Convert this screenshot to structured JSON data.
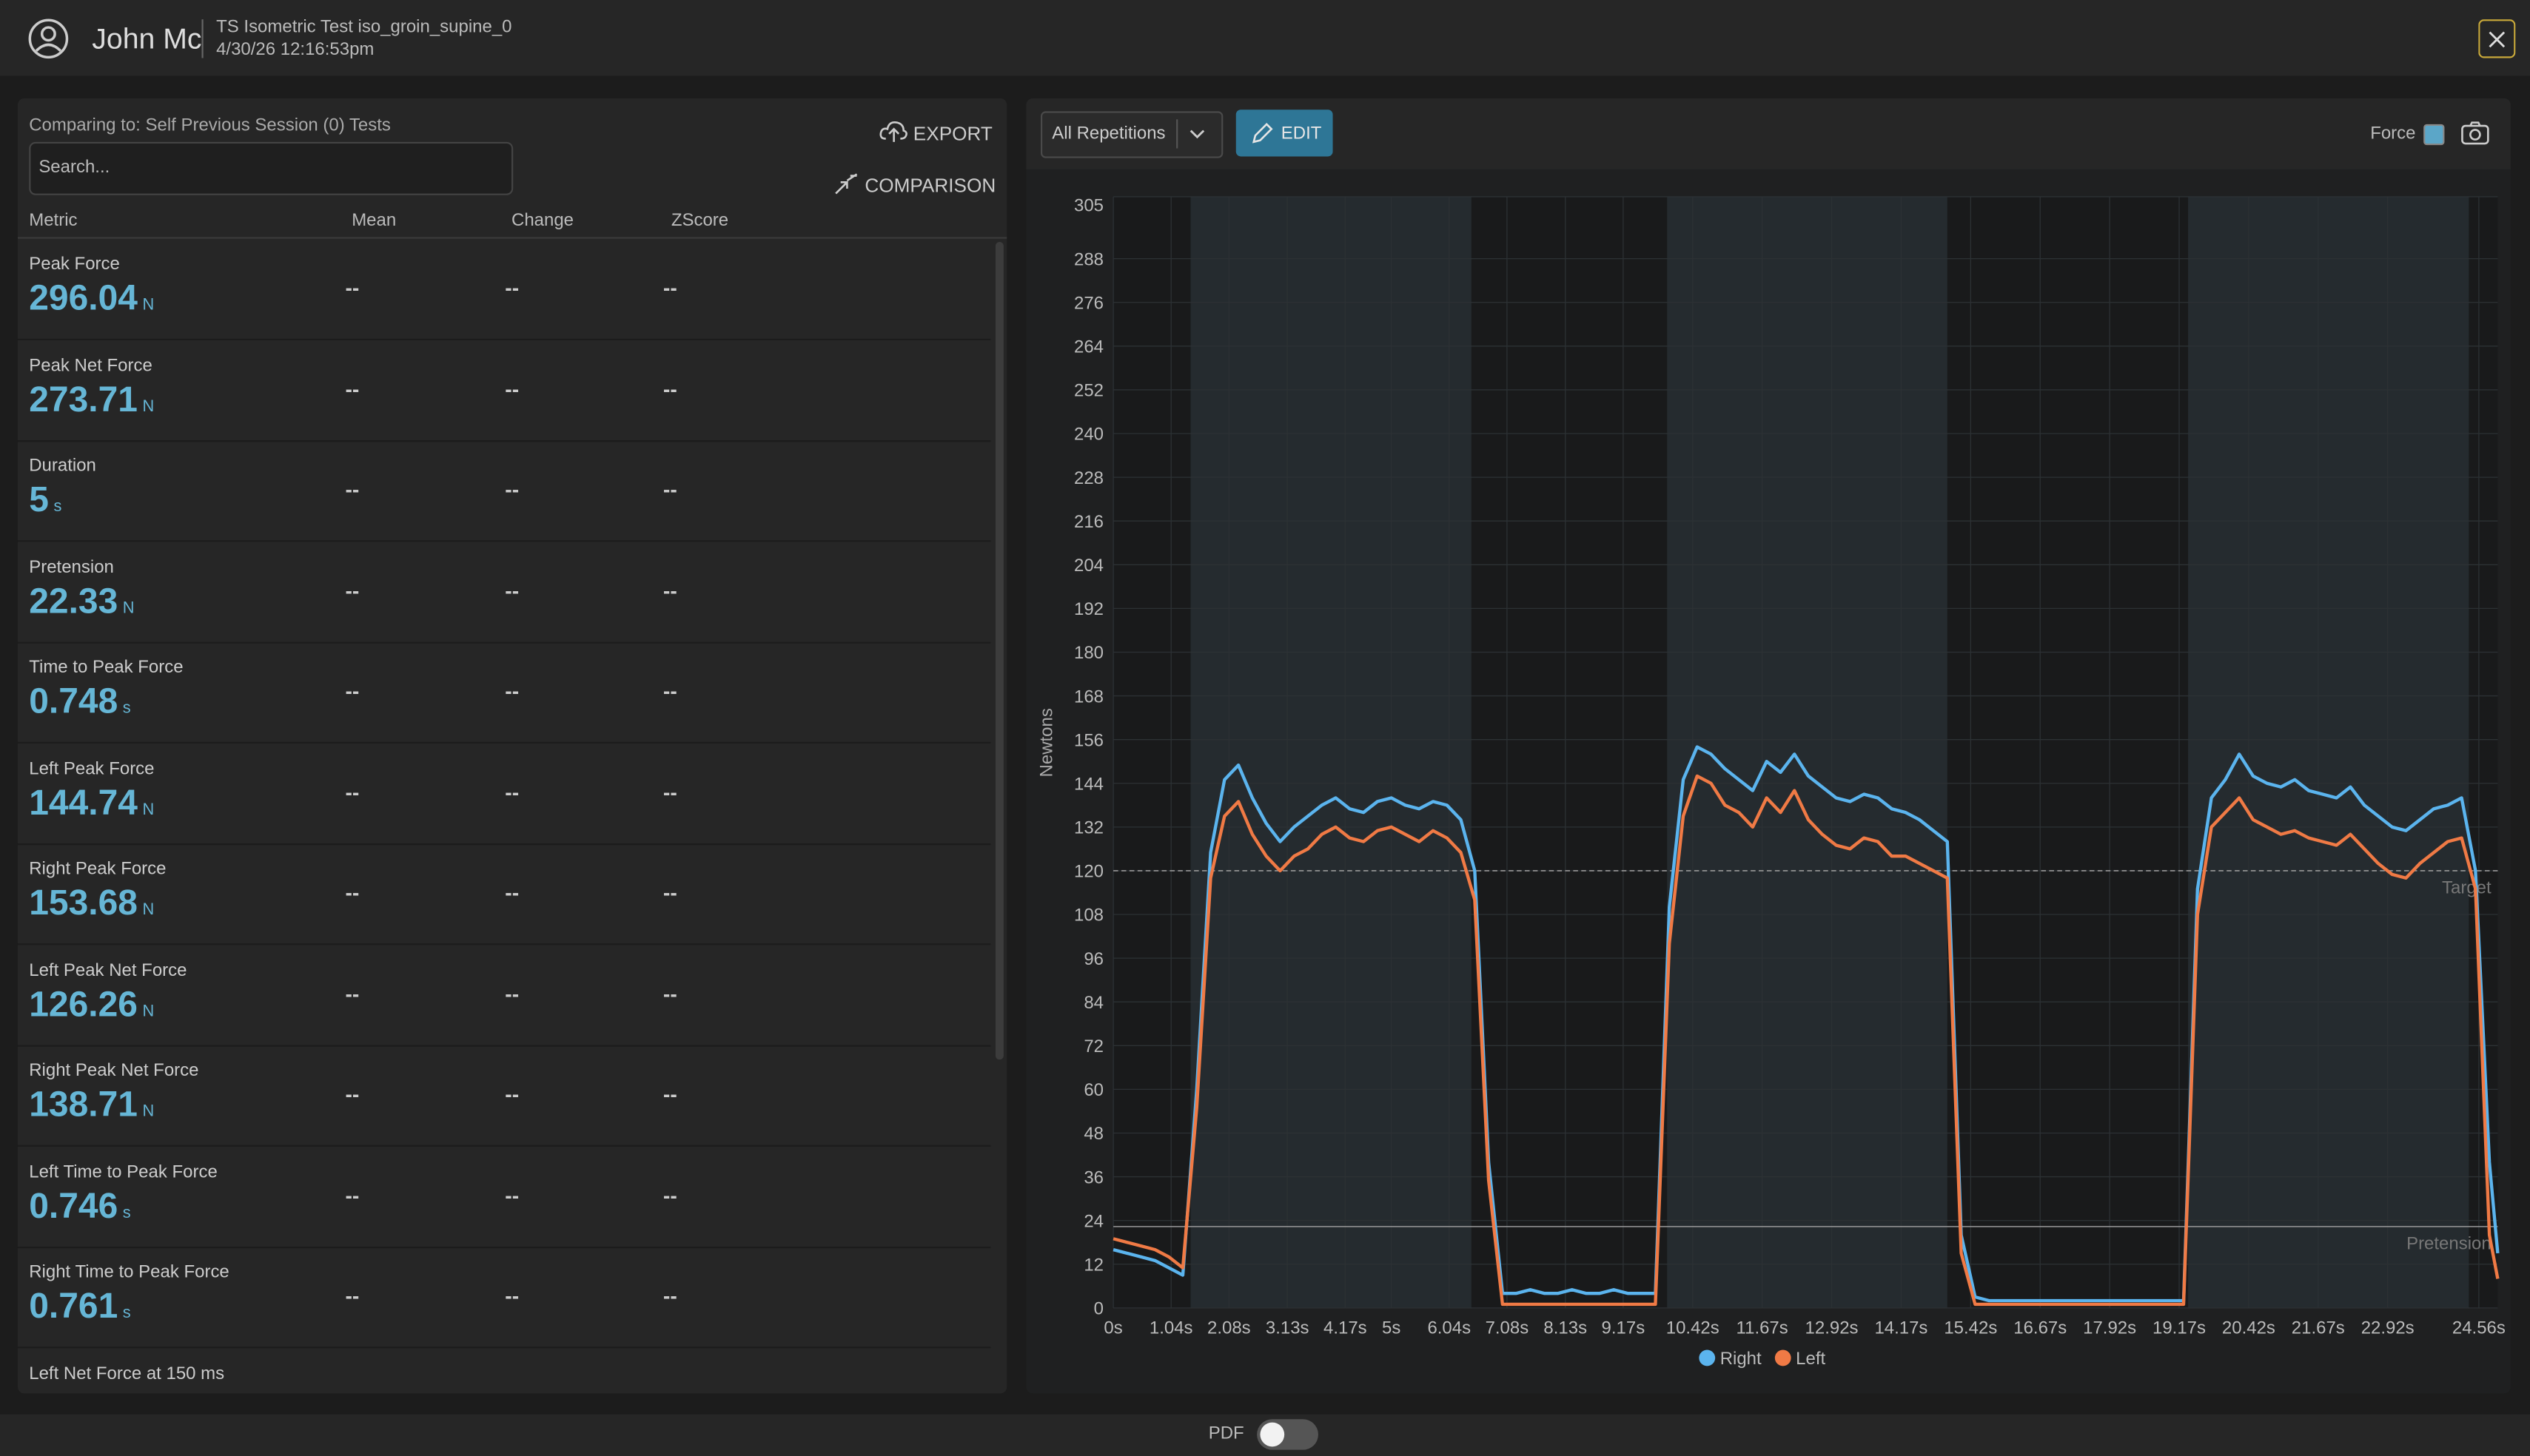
{
  "header": {
    "name": "John Mc",
    "test": "TS Isometric Test iso_groin_supine_0",
    "date": "4/30/26 12:16:53pm"
  },
  "metrics_panel": {
    "comparing": "Comparing to: Self Previous Session (0) Tests",
    "search_placeholder": "Search...",
    "export": "EXPORT",
    "comparison": "COMPARISON",
    "columns": [
      "Metric",
      "Mean",
      "Change",
      "ZScore"
    ],
    "rows": [
      {
        "name": "Peak Force",
        "value": "296.04",
        "unit": "N",
        "mean": "--",
        "change": "--",
        "zscore": "--"
      },
      {
        "name": "Peak Net Force",
        "value": "273.71",
        "unit": "N",
        "mean": "--",
        "change": "--",
        "zscore": "--"
      },
      {
        "name": "Duration",
        "value": "5",
        "unit": "s",
        "mean": "--",
        "change": "--",
        "zscore": "--"
      },
      {
        "name": "Pretension",
        "value": "22.33",
        "unit": "N",
        "mean": "--",
        "change": "--",
        "zscore": "--"
      },
      {
        "name": "Time to Peak Force",
        "value": "0.748",
        "unit": "s",
        "mean": "--",
        "change": "--",
        "zscore": "--"
      },
      {
        "name": "Left Peak Force",
        "value": "144.74",
        "unit": "N",
        "mean": "--",
        "change": "--",
        "zscore": "--"
      },
      {
        "name": "Right Peak Force",
        "value": "153.68",
        "unit": "N",
        "mean": "--",
        "change": "--",
        "zscore": "--"
      },
      {
        "name": "Left Peak Net Force",
        "value": "126.26",
        "unit": "N",
        "mean": "--",
        "change": "--",
        "zscore": "--"
      },
      {
        "name": "Right Peak Net Force",
        "value": "138.71",
        "unit": "N",
        "mean": "--",
        "change": "--",
        "zscore": "--"
      },
      {
        "name": "Left Time to Peak Force",
        "value": "0.746",
        "unit": "s",
        "mean": "--",
        "change": "--",
        "zscore": "--"
      },
      {
        "name": "Right Time to Peak Force",
        "value": "0.761",
        "unit": "s",
        "mean": "--",
        "change": "--",
        "zscore": "--"
      },
      {
        "name": "Left Net Force at 150 ms"
      }
    ]
  },
  "toolbar": {
    "selector": "All Repetitions",
    "edit": "EDIT",
    "force": "Force"
  },
  "chart_data": {
    "type": "line",
    "y_label": "Newtons",
    "legend": "bottom",
    "grid": true,
    "x": [
      0,
      0.25,
      0.5,
      0.75,
      1,
      1.25,
      1.5,
      1.75,
      2,
      2.25,
      2.5,
      2.75,
      3,
      3.25,
      3.5,
      3.75,
      4,
      4.25,
      4.5,
      4.75,
      5,
      5.25,
      5.5,
      5.75,
      6,
      6.25,
      6.5,
      6.75,
      7,
      7.25,
      7.5,
      7.75,
      8,
      8.25,
      8.5,
      8.75,
      9,
      9.25,
      9.5,
      9.75,
      10,
      10.25,
      10.5,
      10.75,
      11,
      11.25,
      11.5,
      11.75,
      12,
      12.25,
      12.5,
      12.75,
      13,
      13.25,
      13.5,
      13.75,
      14,
      14.25,
      14.5,
      14.75,
      15,
      15.25,
      15.5,
      15.75,
      16,
      16.25,
      16.5,
      16.75,
      17,
      17.25,
      17.5,
      17.75,
      18,
      18.25,
      18.5,
      18.75,
      19,
      19.25,
      19.5,
      19.75,
      20,
      20.25,
      20.5,
      20.75,
      21,
      21.25,
      21.5,
      21.75,
      22,
      22.25,
      22.5,
      22.75,
      23,
      23.25,
      23.5,
      23.75,
      24,
      24.25,
      24.5,
      24.75,
      24.9
    ],
    "series": [
      {
        "name": "Right",
        "color": "#5bb4ee",
        "values": [
          16,
          15,
          14,
          13,
          11,
          9,
          60,
          125,
          145,
          149,
          140,
          133,
          128,
          132,
          135,
          138,
          140,
          137,
          136,
          139,
          140,
          138,
          137,
          139,
          138,
          134,
          120,
          40,
          4,
          4,
          5,
          4,
          4,
          5,
          4,
          4,
          5,
          4,
          4,
          4,
          110,
          145,
          154,
          152,
          148,
          145,
          142,
          150,
          147,
          152,
          146,
          143,
          140,
          139,
          141,
          140,
          137,
          136,
          134,
          131,
          128,
          20,
          3,
          2,
          2,
          2,
          2,
          2,
          2,
          2,
          2,
          2,
          2,
          2,
          2,
          2,
          2,
          2,
          115,
          140,
          145,
          152,
          146,
          144,
          143,
          145,
          142,
          141,
          140,
          143,
          138,
          135,
          132,
          131,
          134,
          137,
          138,
          140,
          120,
          40,
          15
        ]
      },
      {
        "name": "Left",
        "color": "#f07a45",
        "values": [
          19,
          18,
          17,
          16,
          14,
          11,
          55,
          118,
          135,
          139,
          130,
          124,
          120,
          124,
          126,
          130,
          132,
          129,
          128,
          131,
          132,
          130,
          128,
          131,
          129,
          125,
          112,
          35,
          1,
          1,
          1,
          1,
          1,
          1,
          1,
          1,
          1,
          1,
          1,
          1,
          100,
          135,
          146,
          144,
          138,
          136,
          132,
          140,
          136,
          142,
          134,
          130,
          127,
          126,
          129,
          128,
          124,
          124,
          122,
          120,
          118,
          15,
          1,
          1,
          1,
          1,
          1,
          1,
          1,
          1,
          1,
          1,
          1,
          1,
          1,
          1,
          1,
          1,
          108,
          132,
          136,
          140,
          134,
          132,
          130,
          131,
          129,
          128,
          127,
          130,
          126,
          122,
          119,
          118,
          122,
          125,
          128,
          129,
          115,
          20,
          8
        ]
      }
    ],
    "xlim": [
      0,
      24.9
    ],
    "ylim": [
      0,
      305
    ],
    "yticks": [
      0,
      12,
      24,
      36,
      48,
      60,
      72,
      84,
      96,
      108,
      120,
      132,
      144,
      156,
      168,
      180,
      192,
      204,
      216,
      228,
      240,
      252,
      264,
      276,
      288,
      305
    ],
    "xticks": [
      {
        "value": 0,
        "label": "0s"
      },
      {
        "value": 1.04,
        "label": "1.04s"
      },
      {
        "value": 2.08,
        "label": "2.08s"
      },
      {
        "value": 3.13,
        "label": "3.13s"
      },
      {
        "value": 4.17,
        "label": "4.17s"
      },
      {
        "value": 5,
        "label": "5s"
      },
      {
        "value": 6.04,
        "label": "6.04s"
      },
      {
        "value": 7.08,
        "label": "7.08s"
      },
      {
        "value": 8.13,
        "label": "8.13s"
      },
      {
        "value": 9.17,
        "label": "9.17s"
      },
      {
        "value": 10.42,
        "label": "10.42s"
      },
      {
        "value": 11.67,
        "label": "11.67s"
      },
      {
        "value": 12.92,
        "label": "12.92s"
      },
      {
        "value": 14.17,
        "label": "14.17s"
      },
      {
        "value": 15.42,
        "label": "15.42s"
      },
      {
        "value": 16.67,
        "label": "16.67s"
      },
      {
        "value": 17.92,
        "label": "17.92s"
      },
      {
        "value": 19.17,
        "label": "19.17s"
      },
      {
        "value": 20.42,
        "label": "20.42s"
      },
      {
        "value": 21.67,
        "label": "21.67s"
      },
      {
        "value": 22.92,
        "label": "22.92s"
      },
      {
        "value": 24.56,
        "label": "24.56s"
      }
    ],
    "regions": [
      [
        1.39,
        6.44
      ],
      [
        9.96,
        15.0
      ],
      [
        19.33,
        24.38
      ]
    ],
    "reference_lines": [
      {
        "value": 120,
        "label": "Target"
      },
      {
        "value": 22.33,
        "label": "Pretension"
      }
    ]
  },
  "footer": {
    "pdf": "PDF"
  }
}
